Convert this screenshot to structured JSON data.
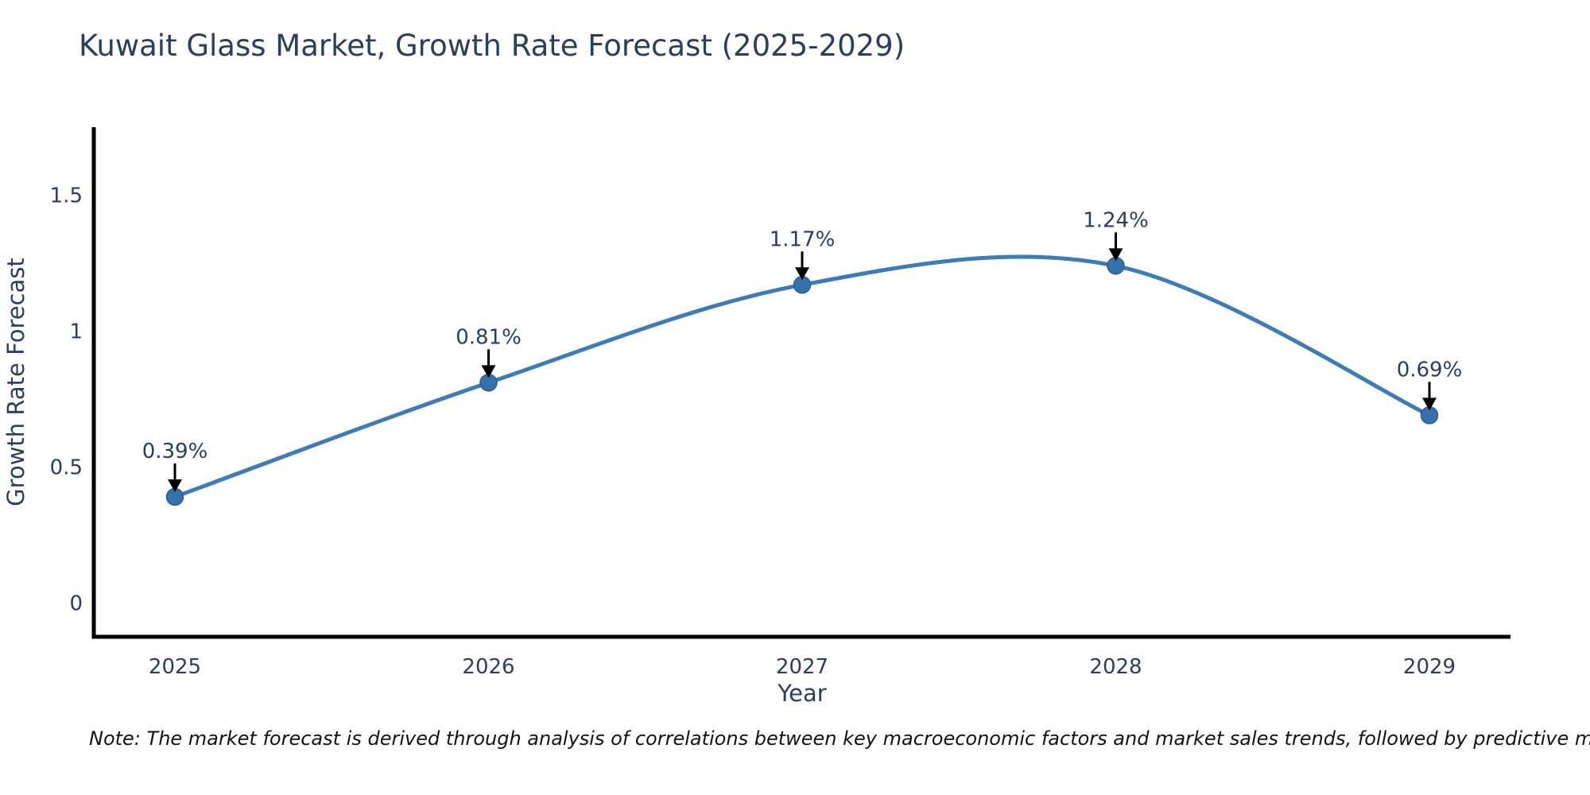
{
  "title": "Kuwait Glass Market, Growth Rate Forecast (2025-2029)",
  "note": "Note: The market forecast is derived through analysis of correlations between key macroeconomic factors and market sales trends, followed by predictive modeling to project future sales",
  "chart_data": {
    "type": "line",
    "title": "Kuwait Glass Market, Growth Rate Forecast (2025-2029)",
    "xlabel": "Year",
    "ylabel": "Growth Rate Forecast",
    "categories": [
      "2025",
      "2026",
      "2027",
      "2028",
      "2029"
    ],
    "series": [
      {
        "name": "Growth Rate Forecast",
        "values": [
          0.39,
          0.81,
          1.17,
          1.24,
          0.69
        ],
        "point_labels": [
          "0.39%",
          "0.81%",
          "1.17%",
          "1.24%",
          "0.69%"
        ]
      }
    ],
    "yticks": [
      0,
      0.5,
      1,
      1.5
    ],
    "ylim": [
      -0.125,
      1.75
    ],
    "grid": false,
    "legend_position": "none",
    "line_shape": "spline",
    "colors": {
      "line": "#3e7cb7",
      "marker_fill": "#3572ab",
      "marker_edge": "#2c5d8f",
      "axis_line": "#000000",
      "tick_text": "#2a3f5f",
      "annotation_text": "#2a3f5f",
      "annotation_arrow": "#000000",
      "background": "#ffffff"
    }
  }
}
